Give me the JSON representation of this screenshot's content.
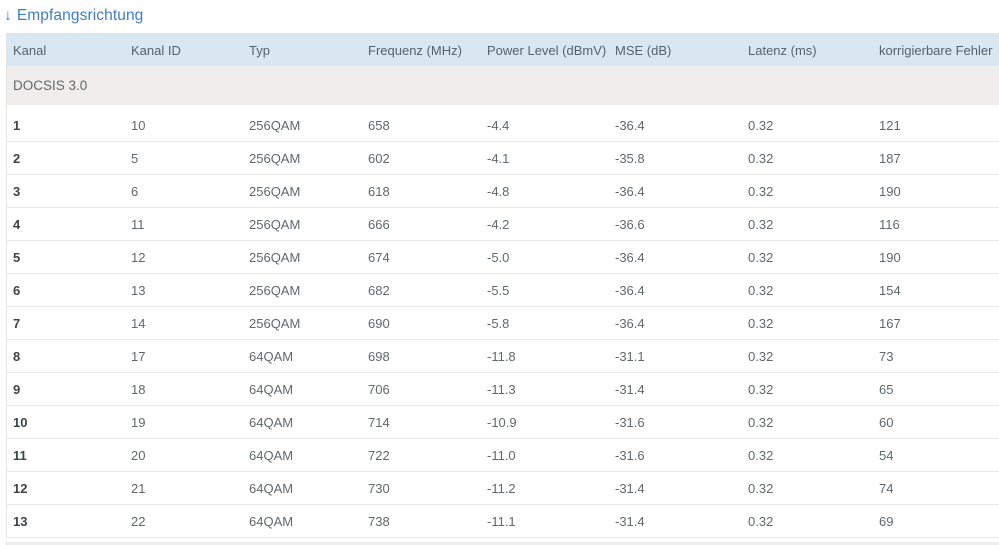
{
  "page": {
    "title": "Empfangsrichtung",
    "title_arrow_icon": "↓"
  },
  "table": {
    "section_label": "DOCSIS 3.0",
    "columns": [
      "Kanal",
      "Kanal ID",
      "Typ",
      "Frequenz (MHz)",
      "Power Level (dBmV)",
      "MSE (dB)",
      "Latenz (ms)",
      "korrigierbare Fehler"
    ],
    "rows": [
      [
        "1",
        "10",
        "256QAM",
        "658",
        "-4.4",
        "-36.4",
        "0.32",
        "121"
      ],
      [
        "2",
        "5",
        "256QAM",
        "602",
        "-4.1",
        "-35.8",
        "0.32",
        "187"
      ],
      [
        "3",
        "6",
        "256QAM",
        "618",
        "-4.8",
        "-36.4",
        "0.32",
        "190"
      ],
      [
        "4",
        "11",
        "256QAM",
        "666",
        "-4.2",
        "-36.6",
        "0.32",
        "116"
      ],
      [
        "5",
        "12",
        "256QAM",
        "674",
        "-5.0",
        "-36.4",
        "0.32",
        "190"
      ],
      [
        "6",
        "13",
        "256QAM",
        "682",
        "-5.5",
        "-36.4",
        "0.32",
        "154"
      ],
      [
        "7",
        "14",
        "256QAM",
        "690",
        "-5.8",
        "-36.4",
        "0.32",
        "167"
      ],
      [
        "8",
        "17",
        "64QAM",
        "698",
        "-11.8",
        "-31.1",
        "0.32",
        "73"
      ],
      [
        "9",
        "18",
        "64QAM",
        "706",
        "-11.3",
        "-31.4",
        "0.32",
        "65"
      ],
      [
        "10",
        "19",
        "64QAM",
        "714",
        "-10.9",
        "-31.6",
        "0.32",
        "60"
      ],
      [
        "11",
        "20",
        "64QAM",
        "722",
        "-11.0",
        "-31.6",
        "0.32",
        "54"
      ],
      [
        "12",
        "21",
        "64QAM",
        "730",
        "-11.2",
        "-31.4",
        "0.32",
        "74"
      ],
      [
        "13",
        "22",
        "64QAM",
        "738",
        "-11.1",
        "-31.4",
        "0.32",
        "69"
      ]
    ]
  },
  "colors": {
    "title_blue": "#3f7dc6",
    "header_row_bg": "#d9e7f3",
    "section_row_bg": "#efeeec",
    "data_text": "#5f686e",
    "first_col_text": "#3c444a",
    "row_separator": "#e9e9e9"
  }
}
